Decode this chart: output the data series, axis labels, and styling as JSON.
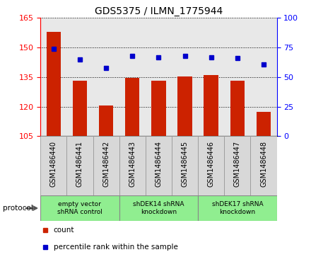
{
  "title": "GDS5375 / ILMN_1775944",
  "categories": [
    "GSM1486440",
    "GSM1486441",
    "GSM1486442",
    "GSM1486443",
    "GSM1486444",
    "GSM1486445",
    "GSM1486446",
    "GSM1486447",
    "GSM1486448"
  ],
  "bar_values": [
    158,
    133,
    120.5,
    134.5,
    133,
    135.5,
    136,
    133,
    117.5
  ],
  "dot_values": [
    74,
    65,
    58,
    68,
    67,
    68,
    67,
    66,
    61
  ],
  "ylim_left": [
    105,
    165
  ],
  "ylim_right": [
    0,
    100
  ],
  "yticks_left": [
    105,
    120,
    135,
    150,
    165
  ],
  "yticks_right": [
    0,
    25,
    50,
    75,
    100
  ],
  "bar_color": "#cc2200",
  "dot_color": "#0000cc",
  "bg_color": "#e8e8e8",
  "protocol_groups": [
    {
      "label": "empty vector\nshRNA control",
      "start": 0,
      "end": 3
    },
    {
      "label": "shDEK14 shRNA\nknockdown",
      "start": 3,
      "end": 6
    },
    {
      "label": "shDEK17 shRNA\nknockdown",
      "start": 6,
      "end": 9
    }
  ],
  "protocol_color": "#90ee90",
  "xtick_bg": "#d8d8d8",
  "legend_count_label": "count",
  "legend_pct_label": "percentile rank within the sample",
  "protocol_label": "protocol"
}
